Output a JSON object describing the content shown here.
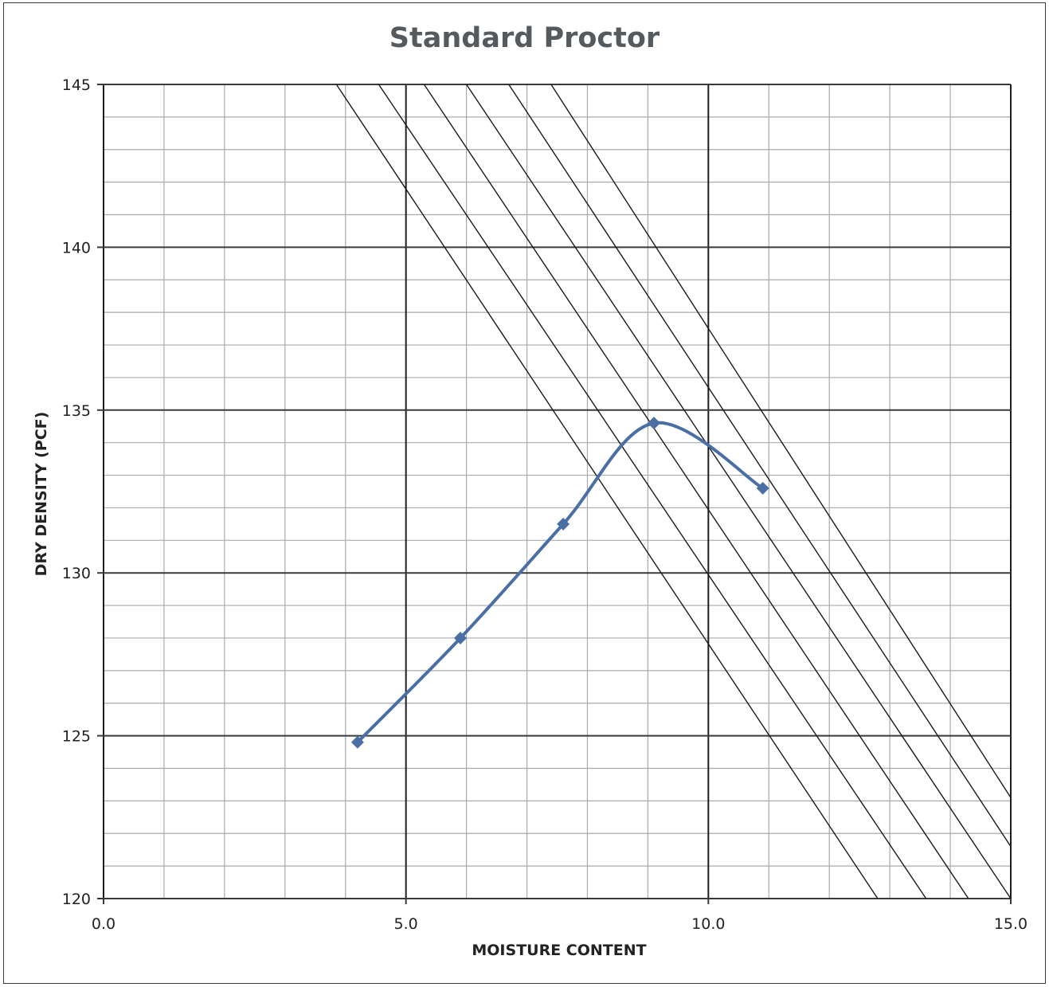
{
  "chart_data": {
    "type": "line",
    "title": "Standard Proctor",
    "xlabel": "MOISTURE CONTENT",
    "ylabel": "DRY DENSITY (PCF)",
    "xlim": [
      0,
      15
    ],
    "ylim": [
      120,
      145
    ],
    "x_ticks": [
      0,
      5,
      10,
      15
    ],
    "x_tick_labels": [
      "0.0",
      "5.0",
      "10.0",
      "15.0"
    ],
    "y_ticks": [
      120,
      125,
      130,
      135,
      140,
      145
    ],
    "y_tick_labels": [
      "120",
      "125",
      "130",
      "135",
      "140",
      "145"
    ],
    "x_minor_step": 1,
    "y_minor_step": 1,
    "grid": true,
    "legend": "none",
    "series": [
      {
        "points": [
          {
            "x": 4.2,
            "y": 124.8
          },
          {
            "x": 5.9,
            "y": 128.0
          },
          {
            "x": 7.6,
            "y": 131.5
          },
          {
            "x": 9.1,
            "y": 134.6
          },
          {
            "x": 10.9,
            "y": 132.6
          }
        ],
        "smooth": true,
        "marker": "diamond",
        "color": "#4a6fa5"
      }
    ],
    "reference_lines": [
      {
        "from": [
          3.85,
          145
        ],
        "to": [
          12.8,
          120
        ]
      },
      {
        "from": [
          4.55,
          145
        ],
        "to": [
          13.6,
          120
        ]
      },
      {
        "from": [
          5.3,
          145
        ],
        "to": [
          14.3,
          120
        ]
      },
      {
        "from": [
          6.0,
          145
        ],
        "to": [
          15.0,
          120
        ]
      },
      {
        "from": [
          6.7,
          145
        ],
        "to": [
          15.0,
          121.6
        ]
      },
      {
        "from": [
          7.4,
          145
        ],
        "to": [
          15.0,
          123.1
        ]
      }
    ]
  }
}
